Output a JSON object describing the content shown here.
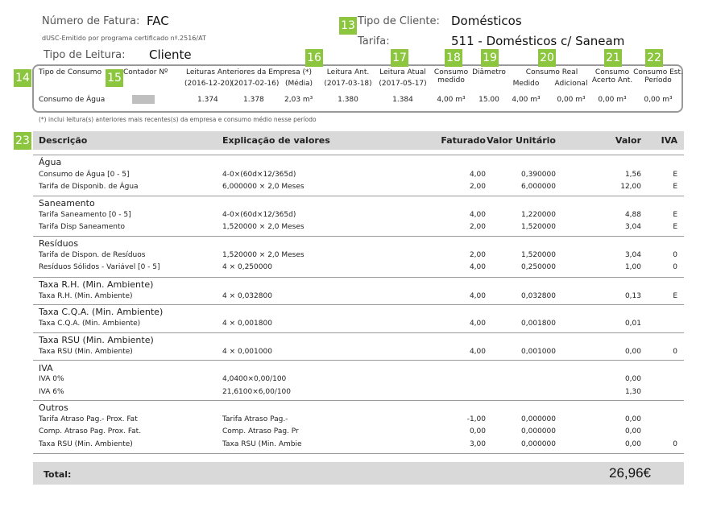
{
  "header": {
    "invoice_label": "Número de Fatura:",
    "invoice_value": "FAC",
    "certified_note": "dUSC-Emitido por programa certificado nº.2516/AT",
    "reading_type_label": "Tipo de Leitura:",
    "reading_type_value": "Cliente",
    "client_type_label": "Tipo de Cliente:",
    "client_type_value": "Domésticos",
    "tariff_label": "Tarifa:",
    "tariff_value": "511 - Domésticos c/ Saneam"
  },
  "badges": [
    "13",
    "14",
    "15",
    "16",
    "17",
    "18",
    "19",
    "20",
    "21",
    "22",
    "23"
  ],
  "meter": {
    "headers": {
      "tipo": "Tipo de Consumo",
      "contador": "Contador Nº",
      "leituras_anteriores": "Leituras Anteriores da Empresa (*)",
      "date1": "(2016-12-20)",
      "date2": "(2017-02-16)",
      "media": "(Média)",
      "leitura_ant": "Leitura Ant.",
      "leitura_ant_date": "(2017-03-18)",
      "leitura_atual": "Leitura Atual",
      "leitura_atual_date": "(2017-05-17)",
      "consumo_medido_1": "Consumo",
      "consumo_medido_2": "medido",
      "diametro": "Diâmetro",
      "consumo_real": "Consumo Real",
      "medido": "Medido",
      "adicional": "Adicional",
      "acerto_1": "Consumo",
      "acerto_2": "Acerto Ant.",
      "est_1": "Consumo Est.",
      "est_2": "Período"
    },
    "row": {
      "tipo": "Consumo de Água",
      "v1": "1.374",
      "v2": "1.378",
      "media": "2,03 m³",
      "leitura_ant": "1.380",
      "leitura_atual": "1.384",
      "consumo_medido": "4,00 m³",
      "diametro": "15.00",
      "medido": "4,00 m³",
      "adicional": "0,00 m³",
      "acerto": "0,00 m³",
      "est": "0,00 m³"
    },
    "footnote": "(*) inclui leitura(s) anteriores mais recentes(s) da empresa e consumo médio nesse período"
  },
  "table": {
    "headers": {
      "descricao": "Descrição",
      "explicacao": "Explicação de valores",
      "faturado": "Faturado",
      "valor_unitario": "Valor Unitário",
      "valor": "Valor",
      "iva": "IVA"
    },
    "sections": [
      {
        "title": "Água",
        "rows": [
          {
            "desc": "Consumo de Água [0 - 5]",
            "exp": "4-0×(60d×12/365d)",
            "fat": "4,00",
            "vu": "0,390000",
            "val": "1,56",
            "iva": "E"
          },
          {
            "desc": "Tarifa de Disponib. de Água",
            "exp": "6,000000 × 2,0 Meses",
            "fat": "2,00",
            "vu": "6,000000",
            "val": "12,00",
            "iva": "E"
          }
        ]
      },
      {
        "title": "Saneamento",
        "rows": [
          {
            "desc": "Tarifa Saneamento [0 - 5]",
            "exp": "4-0×(60d×12/365d)",
            "fat": "4,00",
            "vu": "1,220000",
            "val": "4,88",
            "iva": "E"
          },
          {
            "desc": "Tarifa Disp Saneamento",
            "exp": "1,520000 × 2,0 Meses",
            "fat": "2,00",
            "vu": "1,520000",
            "val": "3,04",
            "iva": "E"
          }
        ]
      },
      {
        "title": "Resíduos",
        "rows": [
          {
            "desc": "Tarifa de Dispon. de Resíduos",
            "exp": "1,520000 × 2,0 Meses",
            "fat": "2,00",
            "vu": "1,520000",
            "val": "3,04",
            "iva": "0"
          },
          {
            "desc": "Resíduos Sólidos - Variável [0 - 5]",
            "exp": "4 × 0,250000",
            "fat": "4,00",
            "vu": "0,250000",
            "val": "1,00",
            "iva": "0"
          }
        ]
      },
      {
        "title": "Taxa R.H. (Min. Ambiente)",
        "rows": [
          {
            "desc": "Taxa R.H. (Min. Ambiente)",
            "exp": "4 × 0,032800",
            "fat": "4,00",
            "vu": "0,032800",
            "val": "0,13",
            "iva": "E"
          }
        ]
      },
      {
        "title": "Taxa C.Q.A. (Min. Ambiente)",
        "rows": [
          {
            "desc": "Taxa C.Q.A. (Min. Ambiente)",
            "exp": "4 × 0,001800",
            "fat": "4,00",
            "vu": "0,001800",
            "val": "0,01",
            "iva": ""
          }
        ]
      },
      {
        "title": "Taxa RSU (Min. Ambiente)",
        "rows": [
          {
            "desc": "Taxa RSU (Min. Ambiente)",
            "exp": "4 × 0,001000",
            "fat": "4,00",
            "vu": "0,001000",
            "val": "0,00",
            "iva": "0"
          }
        ]
      },
      {
        "title": "IVA",
        "rows": [
          {
            "desc": "IVA 0%",
            "exp": "4,0400×0,00/100",
            "fat": "",
            "vu": "",
            "val": "0,00",
            "iva": ""
          },
          {
            "desc": "IVA 6%",
            "exp": "21,6100×6,00/100",
            "fat": "",
            "vu": "",
            "val": "1,30",
            "iva": ""
          }
        ]
      },
      {
        "title": "Outros",
        "rows": [
          {
            "desc": "Tarifa Atraso Pag.- Prox. Fat",
            "exp": "Tarifa Atraso Pag.-",
            "fat": "-1,00",
            "vu": "0,000000",
            "val": "0,00",
            "iva": ""
          },
          {
            "desc": "Comp. Atraso Pag. Prox. Fat.",
            "exp": "Comp. Atraso Pag. Pr",
            "fat": "0,00",
            "vu": "0,000000",
            "val": "0,00",
            "iva": ""
          },
          {
            "desc": "Taxa RSU (Min. Ambiente)",
            "exp": "Taxa RSU (Min. Ambie",
            "fat": "3,00",
            "vu": "0,000000",
            "val": "0,00",
            "iva": "0"
          }
        ]
      }
    ]
  },
  "total": {
    "label": "Total:",
    "value": "26,96€"
  },
  "colors": {
    "badge": "#8cc63f",
    "header_bg": "#d9d9d9",
    "border": "#999999"
  }
}
